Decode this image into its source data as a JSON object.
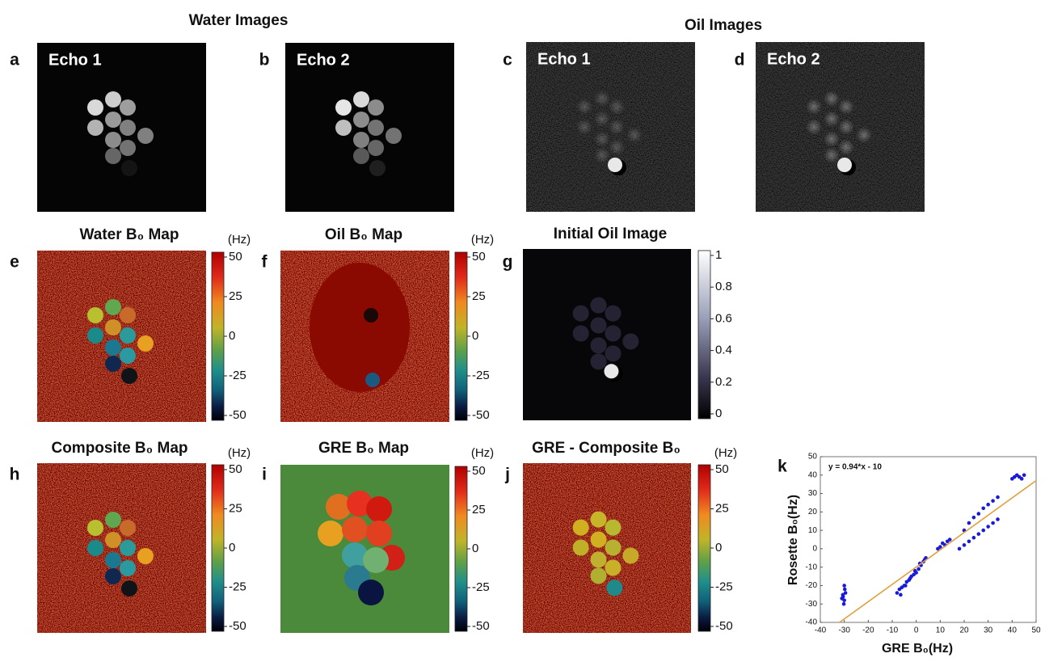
{
  "headings": {
    "water": "Water Images",
    "oil": "Oil Images"
  },
  "panels": [
    {
      "label": "a",
      "title": "Echo 1"
    },
    {
      "label": "b",
      "title": "Echo 2"
    },
    {
      "label": "c",
      "title": "Echo 1"
    },
    {
      "label": "d",
      "title": "Echo 2"
    },
    {
      "label": "e",
      "title": "Water B₀ Map",
      "unit": "(Hz)",
      "colorbar_ticks": [
        50,
        25,
        0,
        -25,
        -50
      ]
    },
    {
      "label": "f",
      "title": "Oil B₀ Map",
      "unit": "(Hz)",
      "colorbar_ticks": [
        50,
        25,
        0,
        -25,
        -50
      ]
    },
    {
      "label": "g",
      "title": "Initial Oil Image",
      "colorbar_ticks": [
        1,
        0.8,
        0.6,
        0.4,
        0.2,
        0
      ]
    },
    {
      "label": "h",
      "title": "Composite B₀ Map",
      "unit": "(Hz)",
      "colorbar_ticks": [
        50,
        25,
        0,
        -25,
        -50
      ]
    },
    {
      "label": "i",
      "title": "GRE B₀ Map",
      "unit": "(Hz)",
      "colorbar_ticks": [
        50,
        25,
        0,
        -25,
        -50
      ]
    },
    {
      "label": "j",
      "title": "GRE - Composite B₀",
      "unit": "(Hz)",
      "colorbar_ticks": [
        50,
        25,
        0,
        -25,
        -50
      ]
    }
  ],
  "chart_data": {
    "type": "scatter",
    "label": "k",
    "annotation": "y = 0.94*x - 10",
    "x_label": "GRE B₀(Hz)",
    "y_label": "Rosette B₀(Hz)",
    "color": "#1a1ad8",
    "x": [
      -30,
      -30.5,
      -29.5,
      -30,
      -31,
      -29.8,
      -30.2,
      -30.6,
      -8,
      -7,
      -6,
      -5,
      -4,
      -3,
      -2,
      -1,
      0,
      1,
      2,
      3,
      4,
      -6.5,
      -4.5,
      -2.5,
      -0.5,
      1.5,
      3.5,
      9,
      10,
      11,
      12,
      13,
      14,
      18,
      20,
      22,
      24,
      26,
      28,
      30,
      32,
      34,
      20,
      22,
      24,
      26,
      28,
      30,
      32,
      34,
      40,
      41,
      42,
      43,
      44,
      45
    ],
    "values": [
      -28,
      -26,
      -24,
      -20,
      -27,
      -22,
      -30,
      -25,
      -24,
      -22,
      -21,
      -20,
      -18,
      -17,
      -15,
      -14,
      -13,
      -11,
      -9,
      -7,
      -5,
      -25,
      -20,
      -16,
      -12,
      -8,
      -6,
      0,
      1,
      3,
      2,
      4,
      5,
      0,
      2,
      4,
      6,
      8,
      10,
      12,
      14,
      16,
      10,
      14,
      17,
      19,
      22,
      24,
      26,
      28,
      38,
      39,
      40,
      39,
      38,
      40
    ],
    "fit": {
      "color": "#e0a040",
      "x": [
        -32,
        50
      ],
      "y": [
        -40,
        37
      ]
    },
    "xlim": [
      -40,
      50
    ],
    "ylim": [
      -40,
      50
    ],
    "xticks": [
      -40,
      -30,
      -20,
      -10,
      0,
      10,
      20,
      30,
      40,
      50
    ],
    "yticks": [
      -40,
      -30,
      -20,
      -10,
      0,
      10,
      20,
      30,
      40,
      50
    ]
  }
}
